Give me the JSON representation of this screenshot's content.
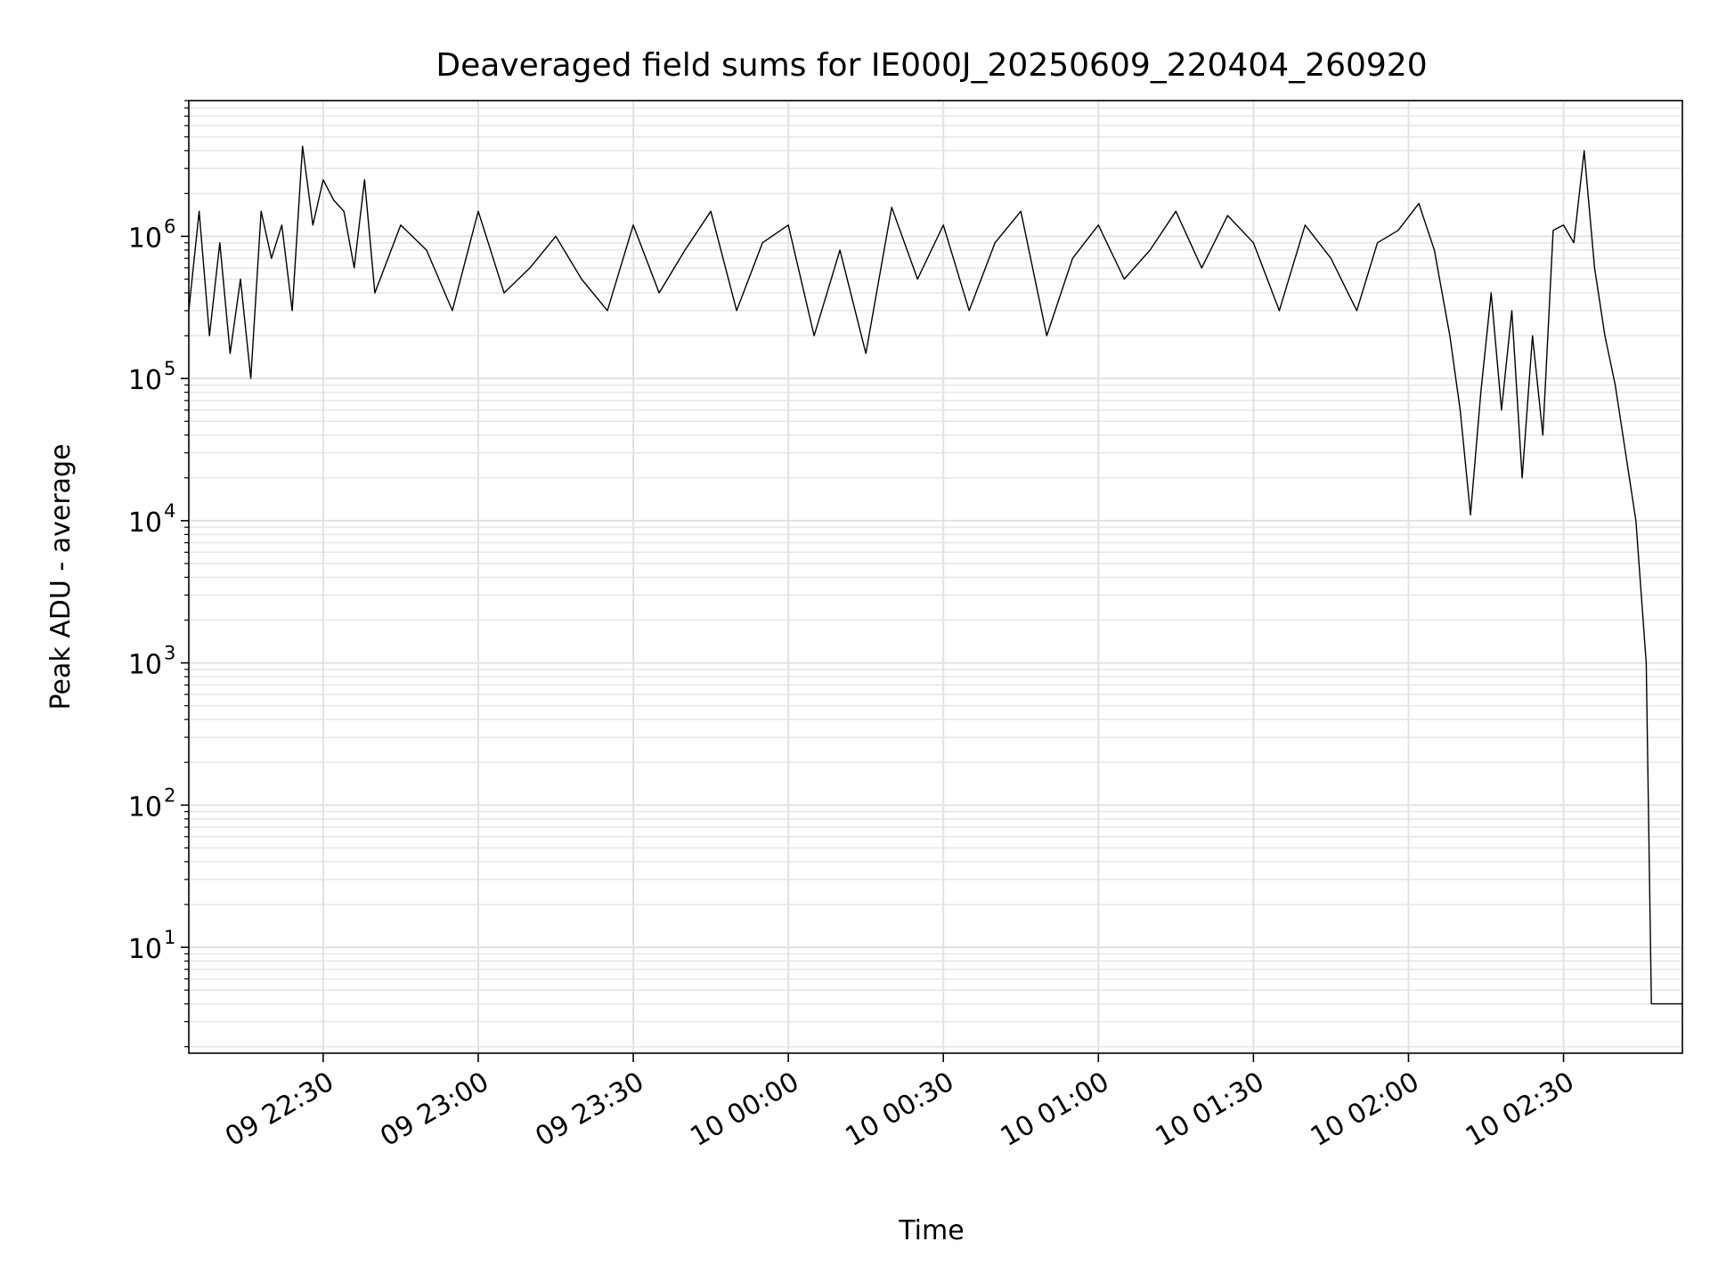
{
  "chart_data": {
    "type": "line",
    "title": "Deaveraged field sums for IE000J_20250609_220404_260920",
    "xlabel": "Time",
    "ylabel": "Peak ADU - average",
    "yscale": "log",
    "ylim": [
      1.8,
      9000000
    ],
    "xlim": [
      "2025-06-09 22:04",
      "2025-06-10 02:53"
    ],
    "grid": true,
    "grid_minor": true,
    "x_ticks": [
      "2025-06-09 22:30",
      "2025-06-09 23:00",
      "2025-06-09 23:30",
      "2025-06-10 00:00",
      "2025-06-10 00:30",
      "2025-06-10 01:00",
      "2025-06-10 01:30",
      "2025-06-10 02:00",
      "2025-06-10 02:30"
    ],
    "x_tick_labels": [
      "09 22:30",
      "09 23:00",
      "09 23:30",
      "10 00:00",
      "10 00:30",
      "10 01:00",
      "10 01:30",
      "10 02:00",
      "10 02:30"
    ],
    "y_tick_values": [
      10,
      100,
      1000,
      10000,
      100000,
      1000000
    ],
    "y_tick_bases": [
      "10",
      "10",
      "10",
      "10",
      "10",
      "10"
    ],
    "y_tick_exponents": [
      "1",
      "2",
      "3",
      "4",
      "5",
      "6"
    ],
    "series": [
      {
        "color": "#000000",
        "x": [
          "2025-06-09 22:04",
          "2025-06-09 22:06",
          "2025-06-09 22:08",
          "2025-06-09 22:10",
          "2025-06-09 22:12",
          "2025-06-09 22:14",
          "2025-06-09 22:16",
          "2025-06-09 22:18",
          "2025-06-09 22:20",
          "2025-06-09 22:22",
          "2025-06-09 22:24",
          "2025-06-09 22:26",
          "2025-06-09 22:28",
          "2025-06-09 22:30",
          "2025-06-09 22:32",
          "2025-06-09 22:34",
          "2025-06-09 22:36",
          "2025-06-09 22:38",
          "2025-06-09 22:40",
          "2025-06-09 22:45",
          "2025-06-09 22:50",
          "2025-06-09 22:55",
          "2025-06-09 23:00",
          "2025-06-09 23:05",
          "2025-06-09 23:10",
          "2025-06-09 23:15",
          "2025-06-09 23:20",
          "2025-06-09 23:25",
          "2025-06-09 23:30",
          "2025-06-09 23:35",
          "2025-06-09 23:40",
          "2025-06-09 23:45",
          "2025-06-09 23:50",
          "2025-06-09 23:55",
          "2025-06-10 00:00",
          "2025-06-10 00:05",
          "2025-06-10 00:10",
          "2025-06-10 00:15",
          "2025-06-10 00:20",
          "2025-06-10 00:25",
          "2025-06-10 00:30",
          "2025-06-10 00:35",
          "2025-06-10 00:40",
          "2025-06-10 00:45",
          "2025-06-10 00:50",
          "2025-06-10 00:55",
          "2025-06-10 01:00",
          "2025-06-10 01:05",
          "2025-06-10 01:10",
          "2025-06-10 01:15",
          "2025-06-10 01:20",
          "2025-06-10 01:25",
          "2025-06-10 01:30",
          "2025-06-10 01:35",
          "2025-06-10 01:40",
          "2025-06-10 01:45",
          "2025-06-10 01:50",
          "2025-06-10 01:54",
          "2025-06-10 01:58",
          "2025-06-10 02:02",
          "2025-06-10 02:05",
          "2025-06-10 02:08",
          "2025-06-10 02:10",
          "2025-06-10 02:12",
          "2025-06-10 02:14",
          "2025-06-10 02:16",
          "2025-06-10 02:18",
          "2025-06-10 02:20",
          "2025-06-10 02:22",
          "2025-06-10 02:24",
          "2025-06-10 02:26",
          "2025-06-10 02:28",
          "2025-06-10 02:30",
          "2025-06-10 02:32",
          "2025-06-10 02:34",
          "2025-06-10 02:36",
          "2025-06-10 02:38",
          "2025-06-10 02:40",
          "2025-06-10 02:42",
          "2025-06-10 02:44",
          "2025-06-10 02:46",
          "2025-06-10 02:47",
          "2025-06-10 02:48",
          "2025-06-10 02:49",
          "2025-06-10 02:50",
          "2025-06-10 02:53"
        ],
        "y": [
          300000,
          1500000,
          200000,
          900000,
          150000,
          500000,
          100000,
          1500000,
          700000,
          1200000,
          300000,
          4300000,
          1200000,
          2500000,
          1800000,
          1500000,
          600000,
          2500000,
          400000,
          1200000,
          800000,
          300000,
          1500000,
          400000,
          600000,
          1000000,
          500000,
          300000,
          1200000,
          400000,
          800000,
          1500000,
          300000,
          900000,
          1200000,
          200000,
          800000,
          150000,
          1600000,
          500000,
          1200000,
          300000,
          900000,
          1500000,
          200000,
          700000,
          1200000,
          500000,
          800000,
          1500000,
          600000,
          1400000,
          900000,
          300000,
          1200000,
          700000,
          300000,
          900000,
          1100000,
          1700000,
          800000,
          200000,
          60000,
          11000,
          80000,
          400000,
          60000,
          300000,
          20000,
          200000,
          40000,
          1100000,
          1200000,
          900000,
          4000000,
          600000,
          200000,
          90000,
          30000,
          10000,
          1000,
          4,
          4,
          4,
          4,
          4
        ]
      }
    ]
  }
}
